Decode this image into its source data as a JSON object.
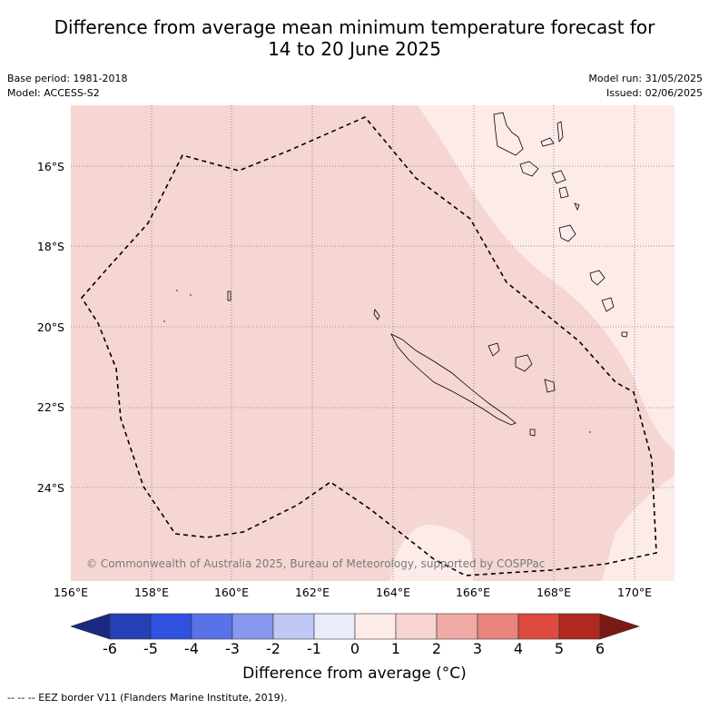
{
  "title": {
    "line1": "Difference from average mean minimum temperature forecast for",
    "line2": "14 to 20 June 2025"
  },
  "meta": {
    "base_period": "Base period: 1981-2018",
    "model": "Model: ACCESS-S2",
    "model_run": "Model run: 31/05/2025",
    "issued": "Issued: 02/06/2025"
  },
  "map": {
    "lat_labels": [
      "16°S",
      "18°S",
      "20°S",
      "22°S",
      "24°S"
    ],
    "lon_labels": [
      "156°E",
      "158°E",
      "160°E",
      "162°E",
      "164°E",
      "166°E",
      "168°E",
      "170°E"
    ],
    "copyright": "© Commonwealth of Australia 2025, Bureau of Meteorology, supported by COSPPac"
  },
  "colorbar": {
    "title": "Difference from average (°C)",
    "ticks": [
      "-6",
      "-5",
      "-4",
      "-3",
      "-2",
      "-1",
      "0",
      "1",
      "2",
      "3",
      "4",
      "5",
      "6"
    ],
    "colors": [
      "#1a2a80",
      "#2340b5",
      "#3050e0",
      "#5a72e8",
      "#8898ee",
      "#c0c8f5",
      "#e8ecfb",
      "#fdebe8",
      "#f6d4d0",
      "#f0aaa5",
      "#e8847c",
      "#dc4a40",
      "#b0281f",
      "#7a1a15"
    ],
    "fill_colors": {
      "warm_1_2": "#f5d6d3",
      "warm_0_1": "#fcebe9"
    }
  },
  "legend_note": "--  --  -- EEZ border V11 (Flanders Marine Institute, 2019)."
}
